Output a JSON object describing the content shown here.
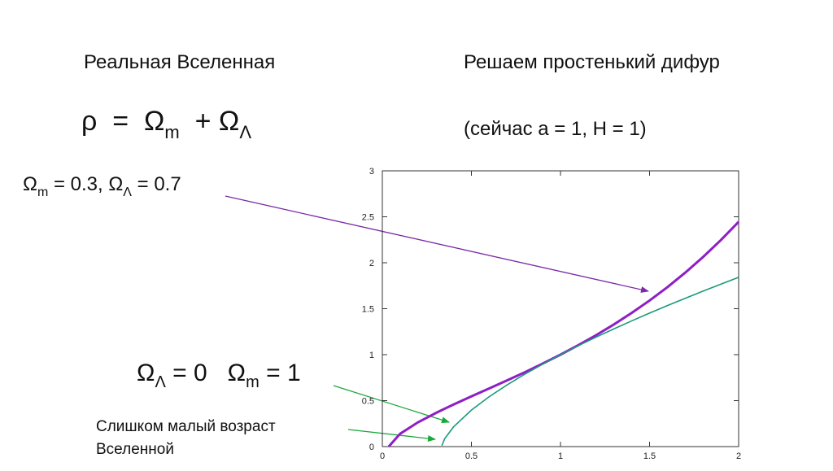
{
  "slide": {
    "left_heading": "Реальная Вселенная",
    "right_heading": "Решаем простенький дифур",
    "formula": [
      "ρ  =  Ω",
      "m",
      "  + Ω",
      "Λ"
    ],
    "conditions": "(сейчас a = 1, H = 1)",
    "lcdm_label": [
      "Ω",
      "m",
      " = 0.3, Ω",
      "Λ",
      " = 0.7"
    ],
    "matter_label": [
      "Ω",
      "Λ",
      " = 0   Ω",
      "m",
      " = 1"
    ],
    "age_note": [
      "Слишком малый возраст",
      "Вселенной"
    ]
  },
  "chart_data": {
    "type": "line",
    "x": [
      0.036,
      0.1,
      0.2,
      0.3,
      0.334,
      0.35,
      0.4,
      0.5,
      0.6,
      0.7,
      0.8,
      0.9,
      1.0,
      1.1,
      1.2,
      1.3,
      1.4,
      1.5,
      1.6,
      1.7,
      1.8,
      1.9,
      2.0
    ],
    "series": [
      {
        "color": "#8e1fc6",
        "values": [
          0,
          0.14,
          0.264,
          0.365,
          0.397,
          0.412,
          0.458,
          0.546,
          0.633,
          0.72,
          0.809,
          0.903,
          1.0,
          1.103,
          1.212,
          1.329,
          1.455,
          1.589,
          1.734,
          1.892,
          2.062,
          2.246,
          2.445
        ]
      },
      {
        "color": "#1a9a7a",
        "values": [
          null,
          null,
          null,
          null,
          0.01,
          0.086,
          0.215,
          0.397,
          0.543,
          0.671,
          0.788,
          0.897,
          1.0,
          1.098,
          1.191,
          1.281,
          1.368,
          1.452,
          1.534,
          1.613,
          1.691,
          1.767,
          1.842
        ]
      }
    ],
    "xlim": [
      0,
      2
    ],
    "ylim": [
      0,
      3
    ],
    "xticks": [
      0,
      0.5,
      1,
      1.5,
      2
    ],
    "yticks": [
      0,
      0.5,
      1,
      1.5,
      2,
      2.5,
      3
    ]
  }
}
